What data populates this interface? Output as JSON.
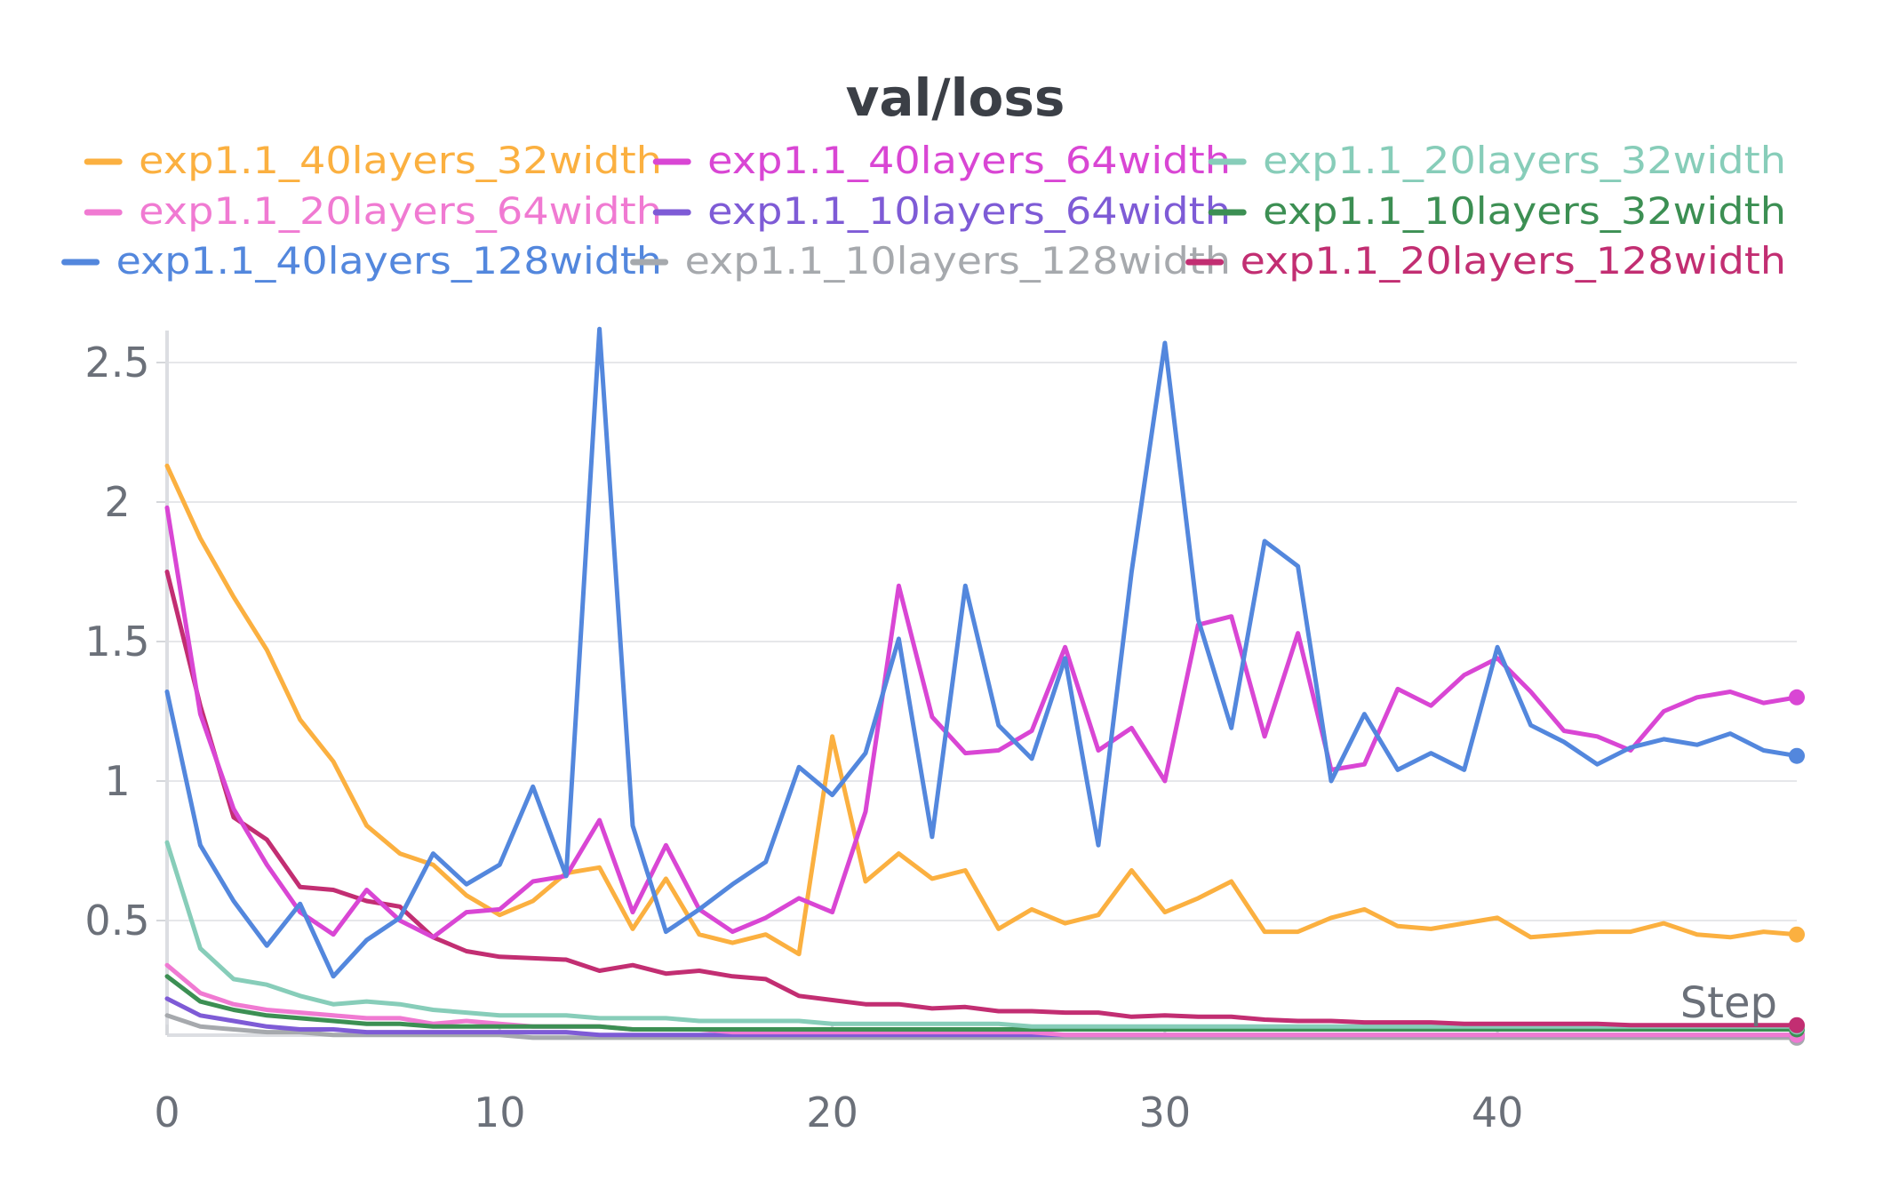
{
  "chart_data": {
    "type": "line",
    "title": "val/loss",
    "xlabel": "Step",
    "ylabel": "",
    "xlim": [
      0,
      49
    ],
    "ylim": [
      0.05,
      2.6
    ],
    "x_ticks": [
      "0",
      "10",
      "20",
      "30",
      "40"
    ],
    "y_ticks": [
      "0.5",
      "1",
      "1.5",
      "2",
      "2.5"
    ],
    "grid": true,
    "legend_placement": "top",
    "series": [
      {
        "name": "exp1.1_40layers_32width",
        "color": "#fbb040",
        "values": [
          2.13,
          1.87,
          1.66,
          1.47,
          1.22,
          1.07,
          0.84,
          0.74,
          0.7,
          0.59,
          0.52,
          0.57,
          0.67,
          0.69,
          0.47,
          0.65,
          0.45,
          0.42,
          0.45,
          0.38,
          1.16,
          0.64,
          0.74,
          0.65,
          0.68,
          0.47,
          0.54,
          0.49,
          0.52,
          0.68,
          0.53,
          0.58,
          0.64,
          0.46,
          0.46,
          0.51,
          0.54,
          0.48,
          0.47,
          0.49,
          0.51,
          0.44,
          0.45,
          0.46,
          0.46,
          0.49,
          0.45,
          0.44,
          0.46,
          0.45
        ]
      },
      {
        "name": "exp1.1_40layers_64width",
        "color": "#d946d4",
        "values": [
          1.98,
          1.24,
          0.9,
          0.7,
          0.53,
          0.45,
          0.61,
          0.5,
          0.44,
          0.53,
          0.54,
          0.64,
          0.66,
          0.86,
          0.53,
          0.77,
          0.54,
          0.46,
          0.51,
          0.58,
          0.53,
          0.89,
          1.7,
          1.23,
          1.1,
          1.11,
          1.18,
          1.48,
          1.11,
          1.19,
          1.0,
          1.56,
          1.59,
          1.16,
          1.53,
          1.04,
          1.06,
          1.33,
          1.27,
          1.38,
          1.44,
          1.32,
          1.18,
          1.16,
          1.11,
          1.25,
          1.3,
          1.32,
          1.28,
          1.3
        ]
      },
      {
        "name": "exp1.1_20layers_32width",
        "color": "#87cdb9",
        "values": [
          0.78,
          0.4,
          0.29,
          0.27,
          0.23,
          0.2,
          0.21,
          0.2,
          0.18,
          0.17,
          0.16,
          0.16,
          0.16,
          0.15,
          0.15,
          0.15,
          0.14,
          0.14,
          0.14,
          0.14,
          0.13,
          0.13,
          0.13,
          0.13,
          0.13,
          0.13,
          0.12,
          0.12,
          0.12,
          0.12,
          0.12,
          0.12,
          0.12,
          0.12,
          0.12,
          0.12,
          0.12,
          0.12,
          0.12,
          0.12,
          0.12,
          0.12,
          0.12,
          0.12,
          0.12,
          0.12,
          0.12,
          0.12,
          0.12,
          0.12
        ]
      },
      {
        "name": "exp1.1_20layers_64width",
        "color": "#f07ad2",
        "values": [
          0.34,
          0.24,
          0.2,
          0.18,
          0.17,
          0.16,
          0.15,
          0.15,
          0.13,
          0.14,
          0.13,
          0.12,
          0.12,
          0.12,
          0.11,
          0.11,
          0.11,
          0.1,
          0.1,
          0.1,
          0.1,
          0.1,
          0.1,
          0.1,
          0.1,
          0.1,
          0.1,
          0.09,
          0.09,
          0.09,
          0.09,
          0.09,
          0.09,
          0.09,
          0.09,
          0.09,
          0.09,
          0.09,
          0.09,
          0.09,
          0.09,
          0.09,
          0.09,
          0.09,
          0.09,
          0.09,
          0.09,
          0.09,
          0.09,
          0.09
        ]
      },
      {
        "name": "exp1.1_10layers_64width",
        "color": "#7e5bd6",
        "values": [
          0.22,
          0.16,
          0.14,
          0.12,
          0.11,
          0.11,
          0.1,
          0.1,
          0.1,
          0.1,
          0.1,
          0.1,
          0.1,
          0.09,
          0.09,
          0.09,
          0.09,
          0.09,
          0.09,
          0.09,
          0.09,
          0.09,
          0.09,
          0.09,
          0.09,
          0.09,
          0.09,
          0.09,
          0.09,
          0.09,
          0.09,
          0.09,
          0.09,
          0.09,
          0.09,
          0.09,
          0.09,
          0.09,
          0.09,
          0.09,
          0.09,
          0.09,
          0.09,
          0.09,
          0.09,
          0.09,
          0.09,
          0.09,
          0.09,
          0.09
        ]
      },
      {
        "name": "exp1.1_10layers_32width",
        "color": "#3c8f53",
        "values": [
          0.3,
          0.21,
          0.18,
          0.16,
          0.15,
          0.14,
          0.13,
          0.13,
          0.12,
          0.12,
          0.12,
          0.12,
          0.12,
          0.12,
          0.11,
          0.11,
          0.11,
          0.11,
          0.11,
          0.11,
          0.11,
          0.11,
          0.11,
          0.11,
          0.11,
          0.11,
          0.11,
          0.11,
          0.11,
          0.11,
          0.11,
          0.11,
          0.11,
          0.11,
          0.11,
          0.11,
          0.11,
          0.11,
          0.11,
          0.11,
          0.11,
          0.11,
          0.11,
          0.11,
          0.11,
          0.11,
          0.11,
          0.11,
          0.11,
          0.11
        ]
      },
      {
        "name": "exp1.1_40layers_128width",
        "color": "#5387dd",
        "values": [
          1.32,
          0.77,
          0.57,
          0.41,
          0.56,
          0.3,
          0.43,
          0.51,
          0.74,
          0.63,
          0.7,
          0.98,
          0.66,
          2.62,
          0.84,
          0.46,
          0.54,
          0.63,
          0.71,
          1.05,
          0.95,
          1.1,
          1.51,
          0.8,
          1.7,
          1.2,
          1.08,
          1.44,
          0.77,
          1.75,
          2.57,
          1.58,
          1.19,
          1.86,
          1.77,
          1.0,
          1.24,
          1.04,
          1.1,
          1.04,
          1.48,
          1.2,
          1.14,
          1.06,
          1.12,
          1.15,
          1.13,
          1.17,
          1.11,
          1.09
        ]
      },
      {
        "name": "exp1.1_10layers_128width",
        "color": "#a6a9ad",
        "values": [
          0.16,
          0.12,
          0.11,
          0.1,
          0.1,
          0.09,
          0.09,
          0.09,
          0.09,
          0.09,
          0.09,
          0.08,
          0.08,
          0.08,
          0.08,
          0.08,
          0.08,
          0.08,
          0.08,
          0.08,
          0.08,
          0.08,
          0.08,
          0.08,
          0.08,
          0.08,
          0.08,
          0.08,
          0.08,
          0.08,
          0.08,
          0.08,
          0.08,
          0.08,
          0.08,
          0.08,
          0.08,
          0.08,
          0.08,
          0.08,
          0.08,
          0.08,
          0.08,
          0.08,
          0.08,
          0.08,
          0.08,
          0.08,
          0.08,
          0.08
        ]
      },
      {
        "name": "exp1.1_20layers_128width",
        "color": "#c22e72",
        "values": [
          1.75,
          1.27,
          0.87,
          0.79,
          0.62,
          0.61,
          0.57,
          0.55,
          0.44,
          0.39,
          0.37,
          0.365,
          0.36,
          0.32,
          0.34,
          0.31,
          0.32,
          0.3,
          0.29,
          0.23,
          0.215,
          0.2,
          0.2,
          0.185,
          0.19,
          0.175,
          0.175,
          0.17,
          0.17,
          0.155,
          0.16,
          0.155,
          0.155,
          0.145,
          0.14,
          0.14,
          0.135,
          0.135,
          0.135,
          0.13,
          0.13,
          0.13,
          0.13,
          0.13,
          0.125,
          0.125,
          0.125,
          0.125,
          0.125,
          0.125
        ]
      }
    ]
  }
}
